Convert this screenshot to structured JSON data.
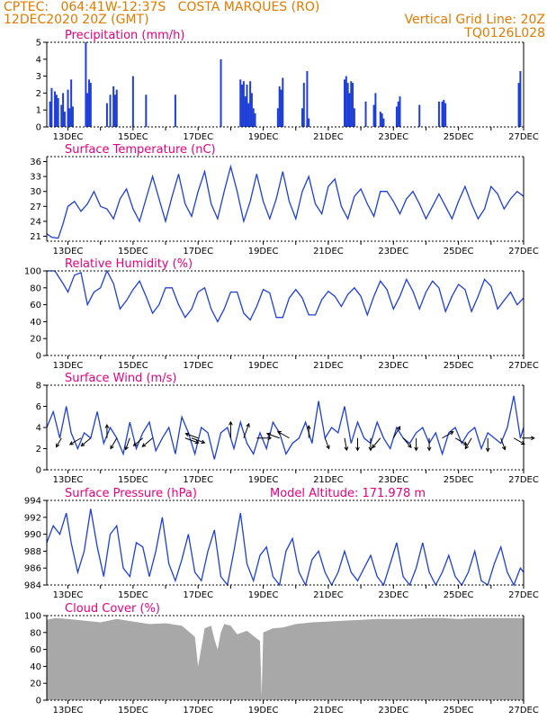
{
  "header": {
    "source_location": "CPTEC:   064:41W-12:37S   COSTA MARQUES (RO)",
    "date_time": "12DEC2020 20Z (GMT)",
    "grid_line_note": "Vertical Grid Line: 20Z",
    "code": "TQ0126L028"
  },
  "x_axis": {
    "tick_labels": [
      "13DEC",
      "15DEC",
      "17DEC",
      "19DEC",
      "21DEC",
      "23DEC",
      "25DEC",
      "27DEC"
    ],
    "tick_days": [
      13,
      15,
      17,
      19,
      21,
      23,
      25,
      27
    ],
    "range_days": [
      12.35,
      27.0
    ]
  },
  "chart_data": [
    {
      "id": "precipitation",
      "type": "bar",
      "title": "Precipitation (mm/h)",
      "ylim": [
        0,
        5
      ],
      "yticks": [
        0,
        1,
        2,
        3,
        4,
        5
      ],
      "color": "#1f3fd6",
      "x_days": [
        12.45,
        12.5,
        12.6,
        12.65,
        12.7,
        12.8,
        12.85,
        12.9,
        13.0,
        13.05,
        13.1,
        13.15,
        13.55,
        13.6,
        13.65,
        13.7,
        14.2,
        14.3,
        14.4,
        14.45,
        14.5,
        15.0,
        15.4,
        16.3,
        17.7,
        18.3,
        18.35,
        18.4,
        18.45,
        18.5,
        18.55,
        18.6,
        18.65,
        18.7,
        18.75,
        19.45,
        19.5,
        19.55,
        19.6,
        20.2,
        20.25,
        20.35,
        20.4,
        21.5,
        21.55,
        21.6,
        21.65,
        21.7,
        21.75,
        21.8,
        22.15,
        22.4,
        22.45,
        22.6,
        22.65,
        22.7,
        23.1,
        23.15,
        23.2,
        23.8,
        24.4,
        24.5,
        24.55,
        24.6,
        26.85,
        26.9
      ],
      "values": [
        1.5,
        2.3,
        2.1,
        1.9,
        1.7,
        1.3,
        2.0,
        0.9,
        2.2,
        1.1,
        2.8,
        1.2,
        5.0,
        2.0,
        2.8,
        2.6,
        1.4,
        1.9,
        2.4,
        1.9,
        2.2,
        3.0,
        1.9,
        1.9,
        4.0,
        2.8,
        2.5,
        2.7,
        1.8,
        2.5,
        1.4,
        2.7,
        2.0,
        1.1,
        0.8,
        1.1,
        2.4,
        2.2,
        2.9,
        1.1,
        2.6,
        3.3,
        0.5,
        2.8,
        3.0,
        2.6,
        2.0,
        2.7,
        2.6,
        1.1,
        1.5,
        1.3,
        2.0,
        0.9,
        0.8,
        0.5,
        1.2,
        1.5,
        1.8,
        1.3,
        1.5,
        1.5,
        1.6,
        1.4,
        2.6,
        3.3
      ]
    },
    {
      "id": "surface-temperature",
      "type": "line",
      "title": "Surface Temperature (nC)",
      "ylim": [
        20,
        37
      ],
      "yticks": [
        21,
        24,
        27,
        30,
        33,
        36
      ],
      "color": "#1f3fd6",
      "x_days": [
        12.35,
        12.5,
        12.7,
        12.85,
        13.0,
        13.2,
        13.4,
        13.6,
        13.8,
        14.0,
        14.2,
        14.4,
        14.6,
        14.8,
        15.0,
        15.2,
        15.4,
        15.6,
        15.8,
        16.0,
        16.2,
        16.4,
        16.6,
        16.8,
        17.0,
        17.2,
        17.4,
        17.6,
        17.8,
        18.0,
        18.2,
        18.4,
        18.6,
        18.8,
        19.0,
        19.2,
        19.4,
        19.6,
        19.8,
        20.0,
        20.2,
        20.4,
        20.6,
        20.8,
        21.0,
        21.2,
        21.4,
        21.6,
        21.8,
        22.0,
        22.2,
        22.4,
        22.6,
        22.8,
        23.0,
        23.2,
        23.4,
        23.6,
        23.8,
        24.0,
        24.2,
        24.4,
        24.6,
        24.8,
        25.0,
        25.2,
        25.4,
        25.6,
        25.8,
        26.0,
        26.2,
        26.4,
        26.6,
        26.8,
        27.0
      ],
      "values": [
        21.5,
        20.8,
        20.6,
        23.5,
        27.0,
        28.0,
        26.0,
        27.5,
        30.0,
        27.0,
        26.5,
        24.5,
        28.5,
        30.5,
        26.5,
        24.0,
        28.5,
        33.0,
        28.5,
        24.0,
        29.0,
        33.5,
        27.5,
        25.0,
        30.0,
        34.0,
        27.5,
        24.5,
        30.0,
        35.0,
        30.0,
        24.0,
        28.0,
        33.5,
        28.0,
        24.5,
        28.5,
        34.0,
        28.0,
        24.5,
        30.0,
        33.0,
        27.5,
        25.5,
        31.0,
        32.5,
        27.0,
        24.5,
        29.0,
        30.5,
        27.5,
        25.0,
        30.0,
        30.0,
        28.0,
        25.5,
        28.5,
        30.0,
        27.5,
        24.5,
        27.0,
        29.5,
        27.0,
        24.5,
        28.0,
        31.0,
        27.5,
        24.5,
        26.5,
        31.0,
        29.5,
        26.5,
        28.5,
        30.0,
        29.0
      ]
    },
    {
      "id": "relative-humidity",
      "type": "line",
      "title": "Relative Humidity (%)",
      "ylim": [
        0,
        100
      ],
      "yticks": [
        0,
        20,
        40,
        60,
        80,
        100
      ],
      "color": "#1f3fd6",
      "x_days": [
        12.35,
        12.6,
        12.85,
        13.0,
        13.2,
        13.4,
        13.6,
        13.8,
        14.0,
        14.2,
        14.4,
        14.6,
        14.8,
        15.0,
        15.2,
        15.4,
        15.6,
        15.8,
        16.0,
        16.2,
        16.4,
        16.6,
        16.8,
        17.0,
        17.2,
        17.4,
        17.6,
        17.8,
        18.0,
        18.2,
        18.4,
        18.6,
        18.8,
        19.0,
        19.2,
        19.4,
        19.6,
        19.8,
        20.0,
        20.2,
        20.4,
        20.6,
        20.8,
        21.0,
        21.2,
        21.4,
        21.6,
        21.8,
        22.0,
        22.2,
        22.4,
        22.6,
        22.8,
        23.0,
        23.2,
        23.4,
        23.6,
        23.8,
        24.0,
        24.2,
        24.4,
        24.6,
        24.8,
        25.0,
        25.2,
        25.4,
        25.6,
        25.8,
        26.0,
        26.2,
        26.4,
        26.6,
        26.8,
        27.0
      ],
      "values": [
        100,
        100,
        85,
        75,
        95,
        98,
        60,
        75,
        80,
        100,
        85,
        55,
        65,
        78,
        88,
        70,
        50,
        60,
        80,
        80,
        60,
        45,
        55,
        75,
        80,
        55,
        40,
        55,
        75,
        75,
        50,
        42,
        58,
        78,
        74,
        45,
        45,
        68,
        78,
        68,
        48,
        48,
        66,
        76,
        70,
        58,
        72,
        80,
        70,
        48,
        70,
        88,
        78,
        55,
        70,
        90,
        76,
        55,
        75,
        88,
        80,
        52,
        70,
        84,
        78,
        52,
        70,
        90,
        82,
        55,
        65,
        75,
        60,
        68
      ]
    },
    {
      "id": "surface-wind",
      "type": "line",
      "title": "Surface Wind (m/s)",
      "ylim": [
        0,
        8
      ],
      "yticks": [
        0,
        2,
        4,
        6,
        8
      ],
      "color": "#1f3fd6",
      "x_days": [
        12.35,
        12.55,
        12.75,
        12.95,
        13.1,
        13.3,
        13.5,
        13.7,
        13.9,
        14.1,
        14.3,
        14.5,
        14.7,
        14.9,
        15.1,
        15.3,
        15.5,
        15.7,
        15.9,
        16.1,
        16.3,
        16.5,
        16.7,
        16.9,
        17.1,
        17.3,
        17.5,
        17.7,
        17.9,
        18.1,
        18.3,
        18.5,
        18.7,
        18.9,
        19.1,
        19.3,
        19.5,
        19.7,
        19.9,
        20.1,
        20.3,
        20.5,
        20.7,
        20.9,
        21.1,
        21.3,
        21.5,
        21.7,
        21.9,
        22.1,
        22.3,
        22.5,
        22.7,
        22.9,
        23.1,
        23.3,
        23.5,
        23.7,
        23.9,
        24.1,
        24.3,
        24.5,
        24.7,
        24.9,
        25.1,
        25.3,
        25.5,
        25.7,
        25.9,
        26.1,
        26.3,
        26.5,
        26.7,
        26.9,
        27.0
      ],
      "values": [
        4.0,
        5.5,
        3.0,
        6.0,
        3.5,
        2.0,
        3.5,
        3.0,
        5.5,
        2.5,
        4.0,
        3.0,
        1.5,
        4.5,
        2.0,
        3.5,
        4.5,
        1.8,
        3.0,
        4.0,
        1.5,
        5.0,
        3.5,
        1.5,
        4.0,
        3.5,
        1.0,
        3.5,
        4.0,
        2.0,
        4.5,
        2.5,
        1.5,
        3.5,
        2.0,
        4.5,
        3.5,
        1.5,
        2.5,
        3.0,
        4.5,
        2.5,
        6.5,
        3.0,
        4.0,
        3.5,
        6.0,
        2.5,
        4.5,
        3.0,
        2.5,
        4.5,
        3.0,
        2.0,
        4.0,
        3.0,
        2.5,
        3.5,
        4.0,
        2.5,
        3.5,
        1.5,
        3.5,
        4.0,
        2.5,
        3.5,
        4.0,
        2.0,
        3.5,
        3.0,
        2.5,
        4.0,
        7.0,
        3.0,
        4.0
      ]
    },
    {
      "id": "surface-pressure",
      "type": "line",
      "title": "Surface Pressure (hPa)",
      "annotation": "Model Altitude: 171.978 m",
      "ylim": [
        984,
        994
      ],
      "yticks": [
        984,
        986,
        988,
        990,
        992,
        994
      ],
      "color": "#1f3fd6",
      "x_days": [
        12.35,
        12.55,
        12.75,
        12.95,
        13.1,
        13.3,
        13.5,
        13.7,
        13.9,
        14.1,
        14.3,
        14.5,
        14.7,
        14.9,
        15.1,
        15.3,
        15.5,
        15.7,
        15.9,
        16.1,
        16.3,
        16.5,
        16.7,
        16.9,
        17.1,
        17.3,
        17.5,
        17.7,
        17.9,
        18.1,
        18.3,
        18.5,
        18.7,
        18.9,
        19.1,
        19.3,
        19.5,
        19.7,
        19.9,
        20.1,
        20.3,
        20.5,
        20.7,
        20.9,
        21.1,
        21.3,
        21.5,
        21.7,
        21.9,
        22.1,
        22.3,
        22.5,
        22.7,
        22.9,
        23.1,
        23.3,
        23.5,
        23.7,
        23.9,
        24.1,
        24.3,
        24.5,
        24.7,
        24.9,
        25.1,
        25.3,
        25.5,
        25.7,
        25.9,
        26.1,
        26.3,
        26.5,
        26.7,
        26.9,
        27.0
      ],
      "values": [
        989.0,
        991.0,
        990.0,
        992.5,
        989.0,
        985.5,
        988.0,
        993.0,
        988.5,
        985.0,
        990.0,
        991.0,
        986.0,
        985.0,
        989.0,
        988.5,
        985.0,
        988.0,
        992.0,
        986.5,
        984.5,
        987.0,
        990.0,
        985.5,
        984.5,
        988.0,
        990.5,
        985.0,
        984.0,
        988.0,
        992.5,
        986.5,
        984.5,
        987.5,
        988.5,
        985.0,
        984.0,
        988.0,
        989.5,
        985.5,
        984.0,
        987.0,
        988.0,
        985.5,
        984.0,
        985.5,
        988.0,
        985.5,
        984.5,
        986.0,
        987.5,
        985.0,
        984.0,
        986.5,
        989.0,
        985.0,
        984.0,
        986.0,
        989.0,
        985.5,
        984.0,
        985.5,
        987.5,
        985.0,
        984.0,
        985.5,
        988.0,
        984.5,
        984.0,
        986.5,
        988.5,
        985.5,
        984.0,
        986.0,
        985.5
      ]
    },
    {
      "id": "cloud-cover",
      "type": "area",
      "title": "Cloud Cover (%)",
      "ylim": [
        0,
        100
      ],
      "yticks": [
        0,
        20,
        40,
        60,
        80,
        100
      ],
      "color": "#a8a8a8",
      "x_days": [
        12.35,
        12.6,
        13.0,
        13.5,
        14.0,
        14.5,
        15.0,
        15.5,
        16.0,
        16.5,
        16.9,
        17.0,
        17.2,
        17.4,
        17.5,
        17.6,
        17.7,
        17.8,
        18.0,
        18.2,
        18.5,
        18.9,
        18.95,
        19.0,
        19.3,
        19.6,
        20.0,
        20.5,
        21.0,
        21.5,
        22.0,
        22.5,
        23.0,
        23.5,
        24.0,
        24.5,
        25.0,
        25.5,
        26.0,
        26.5,
        27.0
      ],
      "values": [
        95,
        97,
        96,
        94,
        92,
        96,
        93,
        90,
        91,
        88,
        75,
        40,
        85,
        88,
        72,
        60,
        80,
        90,
        88,
        78,
        82,
        70,
        5,
        80,
        85,
        86,
        90,
        92,
        93,
        94,
        95,
        96,
        96,
        96,
        97,
        97,
        96,
        97,
        97,
        97,
        97
      ]
    }
  ],
  "wind_arrows": [
    {
      "day": 12.8,
      "speed": 2.0,
      "dir_deg": 210
    },
    {
      "day": 13.4,
      "speed": 3.2,
      "dir_deg": 240
    },
    {
      "day": 13.7,
      "speed": 3.0,
      "dir_deg": 230
    },
    {
      "day": 14.2,
      "speed": 3.5,
      "dir_deg": 0
    },
    {
      "day": 14.5,
      "speed": 3.0,
      "dir_deg": 210
    },
    {
      "day": 14.9,
      "speed": 3.0,
      "dir_deg": 200
    },
    {
      "day": 15.3,
      "speed": 2.8,
      "dir_deg": 230
    },
    {
      "day": 15.6,
      "speed": 3.5,
      "dir_deg": 230
    },
    {
      "day": 16.6,
      "speed": 4.0,
      "dir_deg": 110
    },
    {
      "day": 16.8,
      "speed": 3.8,
      "dir_deg": 110
    },
    {
      "day": 17.0,
      "speed": 3.5,
      "dir_deg": 290
    },
    {
      "day": 18.0,
      "speed": 5.0,
      "dir_deg": 0
    },
    {
      "day": 18.4,
      "speed": 4.5,
      "dir_deg": 20
    },
    {
      "day": 18.8,
      "speed": 4.0,
      "dir_deg": 90
    },
    {
      "day": 19.5,
      "speed": 3.5,
      "dir_deg": 290
    },
    {
      "day": 19.8,
      "speed": 3.5,
      "dir_deg": 300
    },
    {
      "day": 20.4,
      "speed": 3.0,
      "dir_deg": 0
    },
    {
      "day": 20.9,
      "speed": 2.5,
      "dir_deg": 160
    },
    {
      "day": 21.5,
      "speed": 3.0,
      "dir_deg": 170
    },
    {
      "day": 21.9,
      "speed": 3.0,
      "dir_deg": 180
    },
    {
      "day": 22.3,
      "speed": 3.0,
      "dir_deg": 180
    },
    {
      "day": 22.6,
      "speed": 3.2,
      "dir_deg": 220
    },
    {
      "day": 23.0,
      "speed": 3.5,
      "dir_deg": 30
    },
    {
      "day": 23.3,
      "speed": 3.0,
      "dir_deg": 140
    },
    {
      "day": 23.7,
      "speed": 3.0,
      "dir_deg": 180
    },
    {
      "day": 24.1,
      "speed": 3.0,
      "dir_deg": 180
    },
    {
      "day": 24.5,
      "speed": 3.2,
      "dir_deg": 60
    },
    {
      "day": 24.9,
      "speed": 3.5,
      "dir_deg": 120
    },
    {
      "day": 25.4,
      "speed": 3.0,
      "dir_deg": 210
    },
    {
      "day": 25.9,
      "speed": 3.5,
      "dir_deg": 180
    },
    {
      "day": 26.3,
      "speed": 3.0,
      "dir_deg": 160
    },
    {
      "day": 26.7,
      "speed": 3.0,
      "dir_deg": 120
    },
    {
      "day": 26.95,
      "speed": 3.0,
      "dir_deg": 90
    }
  ]
}
